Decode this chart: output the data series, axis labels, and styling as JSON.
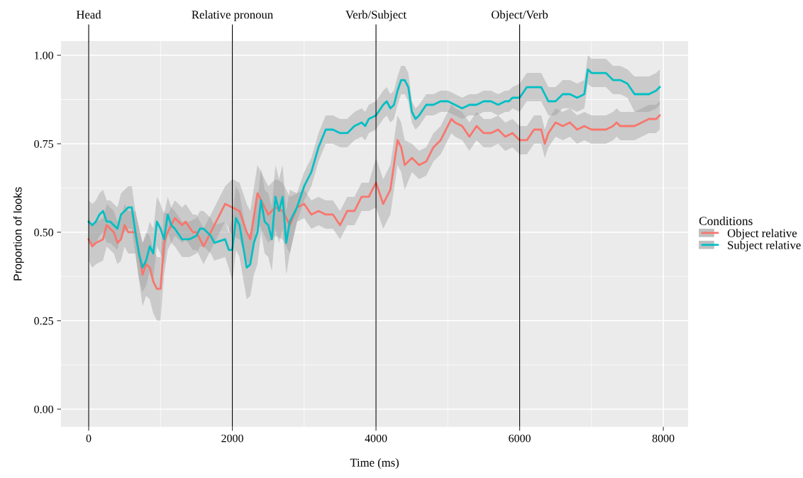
{
  "chart_data": {
    "type": "line",
    "xlabel": "Time (ms)",
    "ylabel": "Proportion of looks",
    "legend_title": "Conditions",
    "legend": "right",
    "grid": true,
    "xlim": [
      -385,
      8346
    ],
    "ylim": [
      -0.05,
      1.04
    ],
    "xticks": [
      0,
      2000,
      4000,
      6000,
      8000
    ],
    "yticks": [
      {
        "value": 0,
        "label": "0.00"
      },
      {
        "value": 0.25,
        "label": "0.25"
      },
      {
        "value": 0.5,
        "label": "0.50"
      },
      {
        "value": 0.75,
        "label": "0.75"
      },
      {
        "value": 1.0,
        "label": "1.00"
      }
    ],
    "ref_lines": [
      {
        "axis": "x",
        "value": 0,
        "label": "Head",
        "color": "#000000"
      },
      {
        "axis": "x",
        "value": 2000,
        "label": "Relative pronoun",
        "color": "#000000"
      },
      {
        "axis": "x",
        "value": 4000,
        "label": "Verb/Subject",
        "color": "#000000"
      },
      {
        "axis": "x",
        "value": 6000,
        "label": "Object/Verb",
        "color": "#000000"
      }
    ],
    "series": [
      {
        "name": "Object relative",
        "color": "#f8766d",
        "x": [
          0,
          50,
          100,
          200,
          250,
          300,
          350,
          400,
          450,
          500,
          550,
          600,
          650,
          750,
          800,
          850,
          900,
          950,
          1000,
          1050,
          1100,
          1200,
          1300,
          1350,
          1450,
          1500,
          1600,
          1700,
          1800,
          1900,
          2000,
          2100,
          2200,
          2250,
          2350,
          2500,
          2600,
          2700,
          2800,
          2900,
          3000,
          3100,
          3200,
          3300,
          3400,
          3500,
          3600,
          3700,
          3800,
          3900,
          4000,
          4100,
          4200,
          4300,
          4350,
          4400,
          4500,
          4600,
          4700,
          4800,
          4900,
          5000,
          5050,
          5100,
          5200,
          5300,
          5400,
          5500,
          5600,
          5700,
          5800,
          5900,
          6000,
          6100,
          6200,
          6300,
          6350,
          6400,
          6500,
          6600,
          6700,
          6800,
          6900,
          7000,
          7100,
          7200,
          7300,
          7350,
          7400,
          7500,
          7600,
          7700,
          7800,
          7900,
          7950
        ],
        "values": [
          0.48,
          0.46,
          0.47,
          0.48,
          0.52,
          0.51,
          0.5,
          0.47,
          0.48,
          0.52,
          0.5,
          0.5,
          0.5,
          0.38,
          0.41,
          0.4,
          0.36,
          0.34,
          0.34,
          0.47,
          0.5,
          0.54,
          0.52,
          0.53,
          0.5,
          0.5,
          0.46,
          0.5,
          0.54,
          0.58,
          0.57,
          0.56,
          0.5,
          0.48,
          0.61,
          0.55,
          0.57,
          0.56,
          0.52,
          0.57,
          0.58,
          0.55,
          0.56,
          0.55,
          0.55,
          0.52,
          0.56,
          0.56,
          0.6,
          0.6,
          0.64,
          0.58,
          0.62,
          0.76,
          0.74,
          0.69,
          0.71,
          0.69,
          0.7,
          0.74,
          0.76,
          0.8,
          0.82,
          0.81,
          0.8,
          0.77,
          0.8,
          0.78,
          0.78,
          0.79,
          0.77,
          0.78,
          0.76,
          0.76,
          0.79,
          0.79,
          0.75,
          0.78,
          0.81,
          0.8,
          0.81,
          0.79,
          0.8,
          0.79,
          0.79,
          0.79,
          0.8,
          0.81,
          0.8,
          0.8,
          0.8,
          0.81,
          0.82,
          0.82,
          0.83
        ],
        "lower": [
          0.42,
          0.4,
          0.41,
          0.42,
          0.46,
          0.45,
          0.44,
          0.41,
          0.42,
          0.46,
          0.44,
          0.44,
          0.44,
          0.29,
          0.32,
          0.31,
          0.27,
          0.25,
          0.25,
          0.38,
          0.45,
          0.49,
          0.47,
          0.48,
          0.45,
          0.45,
          0.41,
          0.45,
          0.49,
          0.53,
          0.49,
          0.48,
          0.42,
          0.4,
          0.53,
          0.47,
          0.49,
          0.48,
          0.44,
          0.53,
          0.54,
          0.51,
          0.52,
          0.51,
          0.51,
          0.48,
          0.52,
          0.52,
          0.56,
          0.56,
          0.57,
          0.51,
          0.55,
          0.69,
          0.67,
          0.62,
          0.67,
          0.65,
          0.66,
          0.7,
          0.72,
          0.76,
          0.78,
          0.77,
          0.76,
          0.73,
          0.76,
          0.74,
          0.74,
          0.75,
          0.73,
          0.74,
          0.72,
          0.72,
          0.75,
          0.75,
          0.71,
          0.74,
          0.77,
          0.76,
          0.77,
          0.75,
          0.76,
          0.75,
          0.75,
          0.75,
          0.76,
          0.77,
          0.76,
          0.76,
          0.76,
          0.77,
          0.78,
          0.78,
          0.79
        ],
        "upper": [
          0.54,
          0.52,
          0.53,
          0.54,
          0.58,
          0.57,
          0.56,
          0.53,
          0.54,
          0.58,
          0.56,
          0.56,
          0.56,
          0.47,
          0.5,
          0.49,
          0.45,
          0.43,
          0.43,
          0.56,
          0.55,
          0.59,
          0.57,
          0.58,
          0.55,
          0.55,
          0.51,
          0.55,
          0.59,
          0.63,
          0.65,
          0.64,
          0.58,
          0.56,
          0.69,
          0.63,
          0.65,
          0.64,
          0.6,
          0.61,
          0.62,
          0.59,
          0.6,
          0.59,
          0.59,
          0.56,
          0.6,
          0.6,
          0.64,
          0.64,
          0.71,
          0.65,
          0.69,
          0.83,
          0.81,
          0.76,
          0.75,
          0.73,
          0.74,
          0.78,
          0.8,
          0.84,
          0.86,
          0.85,
          0.84,
          0.81,
          0.84,
          0.82,
          0.82,
          0.83,
          0.81,
          0.82,
          0.8,
          0.8,
          0.83,
          0.83,
          0.79,
          0.82,
          0.85,
          0.84,
          0.85,
          0.83,
          0.84,
          0.83,
          0.83,
          0.83,
          0.84,
          0.85,
          0.84,
          0.84,
          0.84,
          0.85,
          0.86,
          0.86,
          0.87
        ]
      },
      {
        "name": "Subject relative",
        "color": "#00bfc4",
        "x": [
          0,
          50,
          100,
          150,
          200,
          250,
          300,
          400,
          450,
          550,
          600,
          650,
          700,
          750,
          800,
          850,
          900,
          950,
          1000,
          1050,
          1100,
          1150,
          1200,
          1300,
          1400,
          1500,
          1550,
          1600,
          1700,
          1750,
          1900,
          1950,
          2000,
          2050,
          2100,
          2200,
          2250,
          2300,
          2350,
          2400,
          2450,
          2500,
          2550,
          2600,
          2650,
          2700,
          2750,
          2800,
          2900,
          3000,
          3100,
          3200,
          3300,
          3400,
          3500,
          3600,
          3700,
          3800,
          3850,
          3900,
          4000,
          4100,
          4150,
          4200,
          4250,
          4300,
          4350,
          4400,
          4450,
          4500,
          4550,
          4600,
          4700,
          4800,
          4900,
          4950,
          5000,
          5100,
          5200,
          5300,
          5400,
          5500,
          5600,
          5700,
          5800,
          5850,
          5900,
          6000,
          6100,
          6200,
          6300,
          6400,
          6450,
          6500,
          6600,
          6700,
          6800,
          6900,
          6950,
          7000,
          7100,
          7200,
          7300,
          7400,
          7500,
          7600,
          7700,
          7800,
          7900,
          7950
        ],
        "values": [
          0.53,
          0.52,
          0.53,
          0.55,
          0.56,
          0.53,
          0.53,
          0.51,
          0.55,
          0.57,
          0.57,
          0.5,
          0.44,
          0.4,
          0.42,
          0.46,
          0.44,
          0.53,
          0.51,
          0.48,
          0.55,
          0.52,
          0.51,
          0.48,
          0.48,
          0.49,
          0.51,
          0.51,
          0.49,
          0.47,
          0.48,
          0.45,
          0.45,
          0.54,
          0.52,
          0.4,
          0.41,
          0.47,
          0.5,
          0.59,
          0.53,
          0.52,
          0.48,
          0.6,
          0.56,
          0.6,
          0.47,
          0.53,
          0.57,
          0.63,
          0.67,
          0.74,
          0.79,
          0.79,
          0.78,
          0.78,
          0.8,
          0.81,
          0.8,
          0.82,
          0.83,
          0.86,
          0.87,
          0.85,
          0.86,
          0.9,
          0.93,
          0.93,
          0.91,
          0.84,
          0.82,
          0.83,
          0.86,
          0.86,
          0.87,
          0.87,
          0.87,
          0.86,
          0.85,
          0.86,
          0.86,
          0.87,
          0.87,
          0.86,
          0.87,
          0.87,
          0.88,
          0.88,
          0.91,
          0.91,
          0.91,
          0.87,
          0.87,
          0.87,
          0.89,
          0.89,
          0.88,
          0.89,
          0.96,
          0.95,
          0.95,
          0.95,
          0.93,
          0.93,
          0.92,
          0.89,
          0.89,
          0.89,
          0.9,
          0.91
        ],
        "lower": [
          0.47,
          0.46,
          0.47,
          0.49,
          0.5,
          0.47,
          0.47,
          0.45,
          0.49,
          0.51,
          0.51,
          0.44,
          0.37,
          0.33,
          0.35,
          0.39,
          0.37,
          0.46,
          0.44,
          0.41,
          0.5,
          0.47,
          0.46,
          0.43,
          0.43,
          0.44,
          0.46,
          0.46,
          0.44,
          0.42,
          0.43,
          0.4,
          0.36,
          0.45,
          0.43,
          0.31,
          0.32,
          0.38,
          0.41,
          0.5,
          0.44,
          0.43,
          0.39,
          0.51,
          0.47,
          0.51,
          0.38,
          0.44,
          0.53,
          0.59,
          0.63,
          0.7,
          0.75,
          0.75,
          0.74,
          0.74,
          0.76,
          0.77,
          0.76,
          0.78,
          0.79,
          0.82,
          0.83,
          0.81,
          0.82,
          0.86,
          0.89,
          0.89,
          0.87,
          0.81,
          0.79,
          0.8,
          0.83,
          0.83,
          0.84,
          0.84,
          0.84,
          0.83,
          0.82,
          0.83,
          0.83,
          0.84,
          0.84,
          0.83,
          0.84,
          0.84,
          0.85,
          0.84,
          0.87,
          0.87,
          0.87,
          0.83,
          0.83,
          0.83,
          0.85,
          0.85,
          0.84,
          0.85,
          0.92,
          0.91,
          0.91,
          0.91,
          0.89,
          0.89,
          0.88,
          0.84,
          0.84,
          0.84,
          0.85,
          0.86
        ],
        "upper": [
          0.59,
          0.58,
          0.59,
          0.61,
          0.62,
          0.59,
          0.59,
          0.57,
          0.61,
          0.63,
          0.63,
          0.56,
          0.51,
          0.47,
          0.49,
          0.53,
          0.51,
          0.6,
          0.58,
          0.55,
          0.6,
          0.57,
          0.56,
          0.53,
          0.53,
          0.54,
          0.56,
          0.56,
          0.54,
          0.52,
          0.53,
          0.5,
          0.54,
          0.63,
          0.61,
          0.49,
          0.5,
          0.56,
          0.59,
          0.68,
          0.62,
          0.61,
          0.57,
          0.69,
          0.65,
          0.69,
          0.56,
          0.62,
          0.61,
          0.67,
          0.71,
          0.78,
          0.83,
          0.83,
          0.82,
          0.82,
          0.84,
          0.85,
          0.84,
          0.86,
          0.87,
          0.9,
          0.91,
          0.89,
          0.9,
          0.94,
          0.97,
          0.97,
          0.95,
          0.87,
          0.85,
          0.86,
          0.89,
          0.89,
          0.9,
          0.9,
          0.9,
          0.89,
          0.88,
          0.89,
          0.89,
          0.9,
          0.9,
          0.89,
          0.9,
          0.9,
          0.91,
          0.92,
          0.95,
          0.95,
          0.95,
          0.91,
          0.91,
          0.91,
          0.93,
          0.93,
          0.92,
          0.93,
          1.0,
          0.99,
          0.99,
          0.99,
          0.97,
          0.97,
          0.96,
          0.94,
          0.94,
          0.94,
          0.95,
          0.96
        ]
      }
    ]
  }
}
